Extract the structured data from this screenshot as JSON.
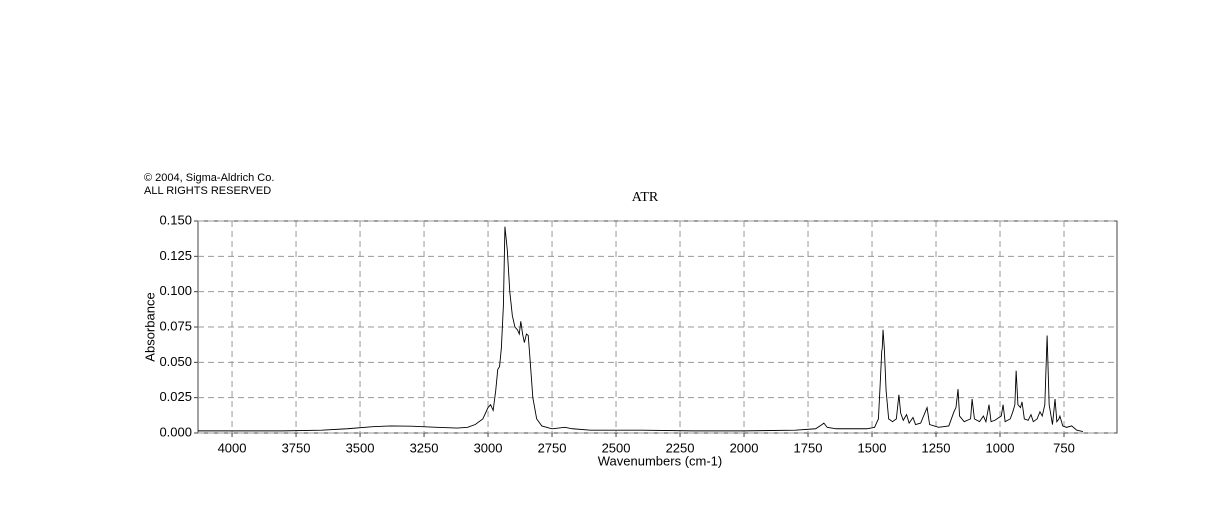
{
  "chart_data": {
    "type": "line",
    "title": "ATR",
    "annotations": [
      "© 2004, Sigma-Aldrich Co.",
      "ALL RIGHTS RESERVED"
    ],
    "x_label": "Wavenumbers (cm-1)",
    "y_label": "Absorbance",
    "xlim": [
      4133,
      543
    ],
    "ylim": [
      0,
      0.15
    ],
    "xticks": [
      4000,
      3750,
      3500,
      3250,
      3000,
      2750,
      2500,
      2250,
      2000,
      1750,
      1500,
      1250,
      1000,
      750
    ],
    "yticks": [
      {
        "value": 0,
        "label": "0.000"
      },
      {
        "value": 0.025,
        "label": "0.025"
      },
      {
        "value": 0.05,
        "label": "0.050"
      },
      {
        "value": 0.075,
        "label": "0.075"
      },
      {
        "value": 0.1,
        "label": "0.100"
      },
      {
        "value": 0.125,
        "label": "0.125"
      },
      {
        "value": 0.15,
        "label": "0.150"
      }
    ],
    "grid": true,
    "x": [
      4133,
      4000,
      3800,
      3650,
      3550,
      3450,
      3380,
      3300,
      3200,
      3120,
      3080,
      3050,
      3020,
      3000,
      2990,
      2980,
      2970,
      2962,
      2955,
      2948,
      2940,
      2934,
      2925,
      2915,
      2905,
      2895,
      2885,
      2878,
      2872,
      2865,
      2858,
      2850,
      2843,
      2835,
      2825,
      2810,
      2790,
      2750,
      2700,
      2670,
      2600,
      2400,
      2200,
      2000,
      1800,
      1720,
      1695,
      1688,
      1675,
      1640,
      1520,
      1490,
      1475,
      1468,
      1462,
      1460,
      1457,
      1452,
      1445,
      1435,
      1420,
      1405,
      1395,
      1388,
      1378,
      1365,
      1355,
      1340,
      1330,
      1310,
      1285,
      1275,
      1240,
      1200,
      1180,
      1172,
      1164,
      1158,
      1140,
      1115,
      1109,
      1100,
      1080,
      1065,
      1055,
      1043,
      1035,
      1020,
      995,
      988,
      980,
      960,
      950,
      942,
      937,
      930,
      920,
      914,
      905,
      890,
      879,
      870,
      855,
      844,
      835,
      825,
      816,
      808,
      795,
      785,
      778,
      770,
      766,
      755,
      740,
      720,
      700,
      676
    ],
    "series": [
      {
        "color": "#000000",
        "values": [
          0.0015,
          0.0015,
          0.0015,
          0.002,
          0.003,
          0.0045,
          0.005,
          0.0048,
          0.004,
          0.0035,
          0.004,
          0.006,
          0.01,
          0.018,
          0.02,
          0.016,
          0.03,
          0.045,
          0.047,
          0.06,
          0.09,
          0.146,
          0.13,
          0.1,
          0.083,
          0.075,
          0.073,
          0.07,
          0.079,
          0.07,
          0.064,
          0.07,
          0.069,
          0.05,
          0.025,
          0.01,
          0.005,
          0.003,
          0.004,
          0.003,
          0.002,
          0.002,
          0.0015,
          0.0015,
          0.002,
          0.003,
          0.006,
          0.007,
          0.004,
          0.003,
          0.003,
          0.004,
          0.01,
          0.035,
          0.058,
          0.06,
          0.073,
          0.06,
          0.03,
          0.01,
          0.008,
          0.01,
          0.027,
          0.014,
          0.009,
          0.013,
          0.007,
          0.011,
          0.006,
          0.007,
          0.018,
          0.006,
          0.004,
          0.005,
          0.015,
          0.018,
          0.031,
          0.012,
          0.008,
          0.01,
          0.024,
          0.01,
          0.008,
          0.012,
          0.008,
          0.02,
          0.008,
          0.009,
          0.012,
          0.02,
          0.008,
          0.01,
          0.015,
          0.02,
          0.044,
          0.02,
          0.018,
          0.022,
          0.01,
          0.009,
          0.013,
          0.008,
          0.01,
          0.015,
          0.012,
          0.02,
          0.069,
          0.02,
          0.006,
          0.024,
          0.008,
          0.01,
          0.012,
          0.005,
          0.004,
          0.005,
          0.002,
          0.001
        ]
      }
    ]
  }
}
